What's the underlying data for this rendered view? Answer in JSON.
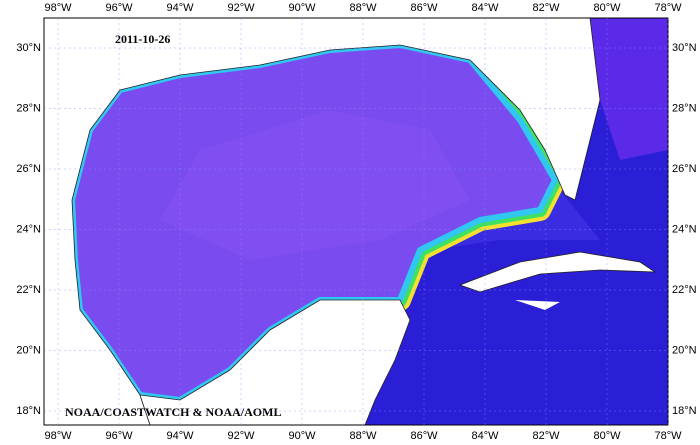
{
  "map": {
    "date": "2011-10-26",
    "credit": "NOAA/COASTWATCH & NOAA/AOML",
    "longitude_labels": [
      "98°W",
      "96°W",
      "94°W",
      "92°W",
      "90°W",
      "88°W",
      "86°W",
      "84°W",
      "82°W",
      "80°W",
      "78°W"
    ],
    "latitude_labels": [
      "30°N",
      "28°N",
      "26°N",
      "24°N",
      "22°N",
      "20°N",
      "18°N"
    ]
  }
}
